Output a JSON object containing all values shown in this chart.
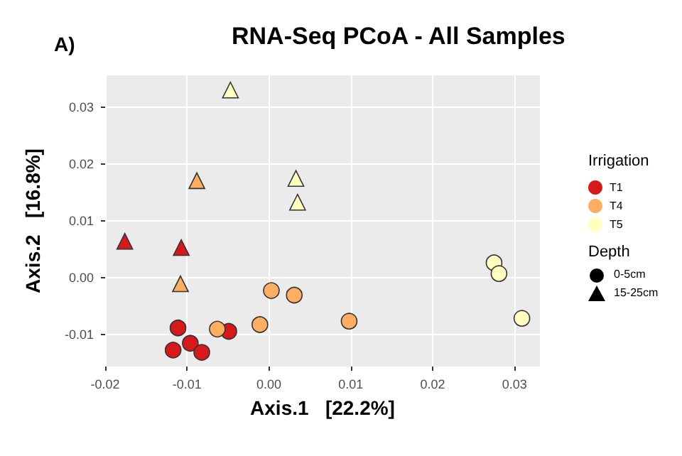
{
  "chart_data": {
    "type": "scatter",
    "title": "RNA-Seq PCoA - All Samples",
    "annotations": [
      "A)",
      "Depth",
      "0-5cm",
      "15-25cm"
    ],
    "xlabel": "Axis.1   [22.2%]",
    "ylabel": "Axis.2   [16.8%]",
    "xlim": [
      -0.02,
      0.0331
    ],
    "ylim": [
      -0.0157,
      0.0357
    ],
    "xticks": [
      -0.02,
      -0.01,
      {
        "value": 0,
        "label": "0.00"
      },
      0.01,
      0.02,
      0.03
    ],
    "yticks": [
      -0.01,
      {
        "value": 0,
        "label": "0.00"
      },
      0.01,
      0.02,
      0.03
    ],
    "grid": true,
    "legend": "right",
    "legend_title": "Irrigation",
    "series": [
      {
        "name": "T1",
        "color": "#d7191c",
        "marker": "circle",
        "x": [
          -0.0111,
          -0.0117,
          -0.0096,
          -0.0082,
          -0.0049
        ],
        "values": [
          -0.0089,
          -0.0128,
          -0.0116,
          -0.0132,
          -0.0095
        ]
      },
      {
        "name": "T4",
        "color": "#fdae61",
        "marker": "circle",
        "x": [
          -0.0063,
          -0.0011,
          0.0003,
          0.0031,
          0.0098
        ],
        "values": [
          -0.0091,
          -0.0083,
          -0.0023,
          -0.0031,
          -0.0077
        ]
      },
      {
        "name": "T5",
        "color": "#ffffbf",
        "marker": "circle",
        "x": [
          0.0275,
          0.0281,
          0.0309
        ],
        "values": [
          0.0026,
          0.0007,
          -0.0072
        ]
      },
      {
        "color": "#d7191c",
        "marker": "triangle",
        "x": [
          -0.0176,
          -0.0107
        ],
        "values": [
          0.0064,
          0.0053
        ]
      },
      {
        "color": "#fdae61",
        "marker": "triangle",
        "x": [
          -0.0088,
          -0.0108
        ],
        "values": [
          0.0171,
          -0.0011
        ]
      },
      {
        "color": "#ffffbf",
        "marker": "triangle",
        "x": [
          -0.0047,
          0.0033,
          0.0035
        ],
        "values": [
          0.0331,
          0.0175,
          0.0133
        ]
      }
    ]
  }
}
